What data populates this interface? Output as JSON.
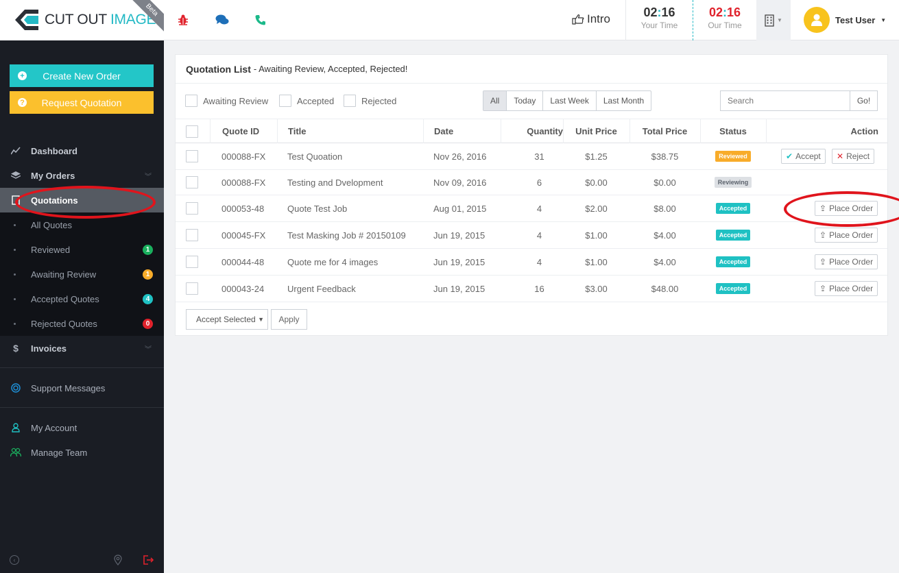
{
  "brand": {
    "name_part1": "CUT OUT",
    "name_part2": "IMAGE",
    "beta": "Beta"
  },
  "header": {
    "intro_label": "Intro",
    "your_time": {
      "hours": "02",
      "minutes": "16",
      "label": "Your Time"
    },
    "our_time": {
      "hours": "02",
      "minutes": "16",
      "label": "Our Time"
    },
    "user_name": "Test User"
  },
  "sidebar": {
    "create_order": "Create New Order",
    "request_quotation": "Request Quotation",
    "dashboard": "Dashboard",
    "my_orders": "My Orders",
    "quotations": "Quotations",
    "sub_items": [
      {
        "label": "All Quotes",
        "badge": ""
      },
      {
        "label": "Reviewed",
        "badge": "1",
        "badge_color": "#1ab05e"
      },
      {
        "label": "Awaiting Review",
        "badge": "1",
        "badge_color": "#f8ac2a"
      },
      {
        "label": "Accepted Quotes",
        "badge": "4",
        "badge_color": "#1fc1c3"
      },
      {
        "label": "Rejected Quotes",
        "badge": "0",
        "badge_color": "#e0222c"
      }
    ],
    "invoices": "Invoices",
    "support_messages": "Support Messages",
    "my_account": "My Account",
    "manage_team": "Manage Team"
  },
  "panel": {
    "title": "Quotation List",
    "subtitle": "- Awaiting Review, Accepted, Rejected!",
    "filters": [
      "Awaiting Review",
      "Accepted",
      "Rejected"
    ],
    "date_segments": [
      "All",
      "Today",
      "Last Week",
      "Last Month"
    ],
    "search_placeholder": "Search",
    "go_label": "Go!",
    "columns": [
      "Quote ID",
      "Title",
      "Date",
      "Quantity",
      "Unit Price",
      "Total Price",
      "Status",
      "Action"
    ],
    "rows": [
      {
        "id": "000088-FX",
        "title": "Test Quoation",
        "date": "Nov 26, 2016",
        "qty": "31",
        "unit": "$1.25",
        "total": "$38.75",
        "status": "Reviewed"
      },
      {
        "id": "000088-FX",
        "title": "Testing and Dvelopment",
        "date": "Nov 09, 2016",
        "qty": "6",
        "unit": "$0.00",
        "total": "$0.00",
        "status": "Reviewing"
      },
      {
        "id": "000053-48",
        "title": "Quote Test Job",
        "date": "Aug 01, 2015",
        "qty": "4",
        "unit": "$2.00",
        "total": "$8.00",
        "status": "Accepted"
      },
      {
        "id": "000045-FX",
        "title": "Test Masking Job # 20150109",
        "date": "Jun 19, 2015",
        "qty": "4",
        "unit": "$1.00",
        "total": "$4.00",
        "status": "Accepted"
      },
      {
        "id": "000044-48",
        "title": "Quote me for 4 images",
        "date": "Jun 19, 2015",
        "qty": "4",
        "unit": "$1.00",
        "total": "$4.00",
        "status": "Accepted"
      },
      {
        "id": "000043-24",
        "title": "Urgent Feedback",
        "date": "Jun 19, 2015",
        "qty": "16",
        "unit": "$3.00",
        "total": "$48.00",
        "status": "Accepted"
      }
    ],
    "actions": {
      "accept": "Accept",
      "reject": "Reject",
      "place_order": "Place Order"
    },
    "bulk_select": "Accept Selected",
    "apply": "Apply"
  },
  "colors": {
    "accent": "#23c6c8",
    "warning": "#fbc02d",
    "sidebar": "#1a1d24",
    "annotation_red": "#e0141c"
  }
}
